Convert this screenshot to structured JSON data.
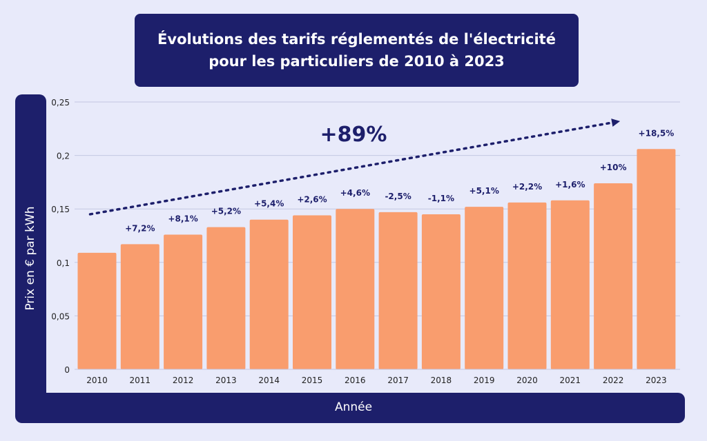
{
  "title": {
    "line1": "Évolutions des tarifs réglementés de l'électricité",
    "line2": "pour les particuliers de 2010 à 2023"
  },
  "colors": {
    "navy": "#1d1f6b",
    "bar": "#f99d6e",
    "background": "#e8eafa",
    "grid": "#c4c7e2"
  },
  "chart_data": {
    "type": "bar",
    "xlabel": "Année",
    "ylabel": "Prix en € par kWh",
    "ylim": [
      0,
      0.25
    ],
    "yticks": [
      0,
      0.05,
      0.1,
      0.15,
      0.2,
      0.25
    ],
    "ytick_labels": [
      "0",
      "0,05",
      "0,1",
      "0,15",
      "0,2",
      "0,25"
    ],
    "grid": true,
    "categories": [
      "2010",
      "2011",
      "2012",
      "2013",
      "2014",
      "2015",
      "2016",
      "2017",
      "2018",
      "2019",
      "2020",
      "2021",
      "2022",
      "2023"
    ],
    "values": [
      0.109,
      0.117,
      0.126,
      0.133,
      0.14,
      0.144,
      0.15,
      0.147,
      0.145,
      0.152,
      0.156,
      0.158,
      0.174,
      0.206
    ],
    "data_labels": [
      "",
      "+7,2%",
      "+8,1%",
      "+5,2%",
      "+5,4%",
      "+2,6%",
      "+4,6%",
      "-2,5%",
      "-1,1%",
      "+5,1%",
      "+2,2%",
      "+1,6%",
      "+10%",
      "+18,5%"
    ],
    "annotation": {
      "text": "+89%",
      "arrow_from": {
        "x": "2010",
        "y": 0.145
      },
      "arrow_to": {
        "x": "2022",
        "y": 0.232
      }
    }
  }
}
